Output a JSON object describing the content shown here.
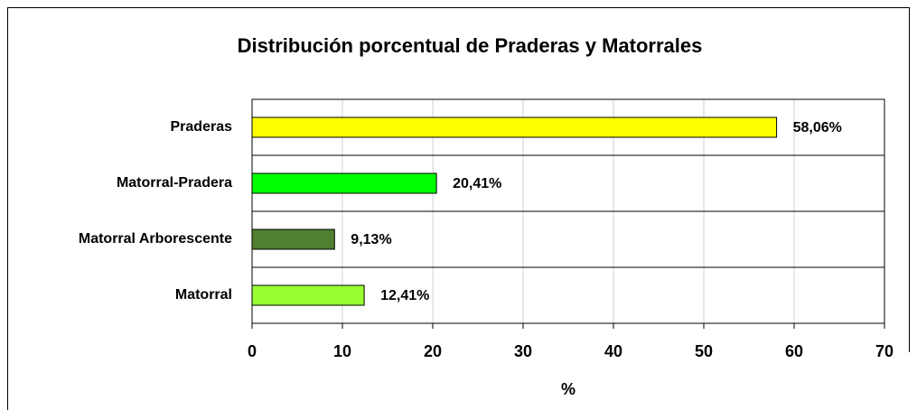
{
  "chart_data": {
    "type": "bar",
    "orientation": "horizontal",
    "title": "Distribución porcentual de Praderas y Matorrales",
    "categories": [
      "Praderas",
      "Matorral-Pradera",
      "Matorral Arborescente",
      "Matorral"
    ],
    "values": [
      58.06,
      20.41,
      9.13,
      12.41
    ],
    "value_labels": [
      "58,06%",
      "20,41%",
      "9,13%",
      "12,41%"
    ],
    "colors": [
      "#ffff00",
      "#00ff00",
      "#4f7f2f",
      "#99ff33"
    ],
    "xlabel": "%",
    "xlim": [
      0,
      70
    ],
    "xticks": [
      0,
      10,
      20,
      30,
      40,
      50,
      60,
      70
    ],
    "grid": true
  }
}
